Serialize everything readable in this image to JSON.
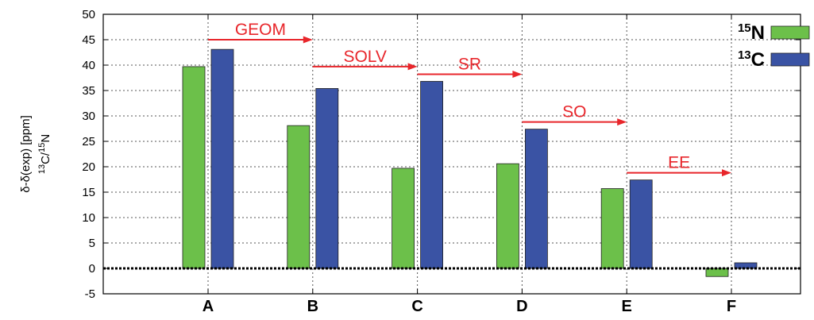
{
  "chart_data": {
    "type": "bar",
    "categories": [
      "A",
      "B",
      "C",
      "D",
      "E",
      "F"
    ],
    "series": [
      {
        "name": "15N",
        "name_sup": "15",
        "name_base": "N",
        "color": "#6cc04a",
        "values": [
          39.7,
          28.1,
          19.7,
          20.6,
          15.7,
          -1.6
        ]
      },
      {
        "name": "13C",
        "name_sup": "13",
        "name_base": "C",
        "color": "#3a53a4",
        "values": [
          43.1,
          35.4,
          36.8,
          27.4,
          17.4,
          1.1
        ]
      }
    ],
    "ylim": [
      -5,
      50
    ],
    "yticks": [
      -5,
      0,
      5,
      10,
      15,
      20,
      25,
      30,
      35,
      40,
      45,
      50
    ],
    "ylabel_line1": "δ-δ(exp) [ppm]",
    "ylabel_line2": {
      "sup1": "13",
      "base1": "C/",
      "sup2": "15",
      "base2": "N"
    },
    "grid": true,
    "reference_line": 0,
    "legend_position": "top-right",
    "annotations": [
      {
        "label": "GEOM",
        "from": "A",
        "to": "B",
        "y": 45.0,
        "color": "#e8262b"
      },
      {
        "label": "SOLV",
        "from": "B",
        "to": "C",
        "y": 39.7,
        "color": "#e8262b"
      },
      {
        "label": "SR",
        "from": "C",
        "to": "D",
        "y": 38.2,
        "color": "#e8262b"
      },
      {
        "label": "SO",
        "from": "D",
        "to": "E",
        "y": 28.8,
        "color": "#e8262b"
      },
      {
        "label": "EE",
        "from": "E",
        "to": "F",
        "y": 18.8,
        "color": "#e8262b"
      }
    ]
  }
}
